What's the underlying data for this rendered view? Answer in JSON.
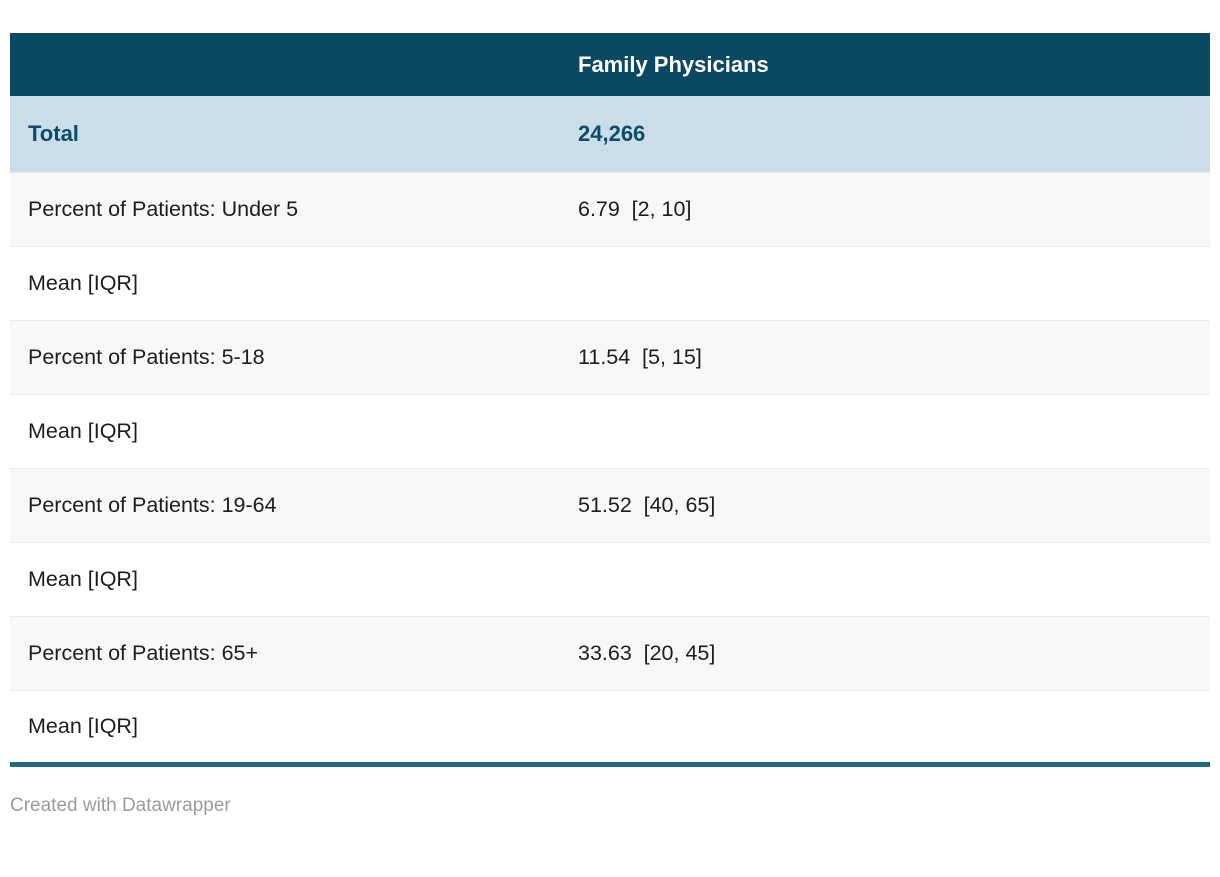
{
  "table": {
    "header": {
      "col1_label": "",
      "col2_label": "Family Physicians"
    },
    "total_row": {
      "label": "Total",
      "value": "24,266"
    },
    "rows": [
      {
        "label": "Percent of Patients: Under 5",
        "value": "6.79",
        "iqr": "[2, 10]"
      },
      {
        "label": "Mean [IQR]",
        "value": "",
        "iqr": ""
      },
      {
        "label": "Percent of Patients: 5-18",
        "value": "11.54",
        "iqr": "[5, 15]"
      },
      {
        "label": "Mean [IQR]",
        "value": "",
        "iqr": ""
      },
      {
        "label": "Percent of Patients: 19-64",
        "value": "51.52",
        "iqr": "[40, 65]"
      },
      {
        "label": "Mean [IQR]",
        "value": "",
        "iqr": ""
      },
      {
        "label": "Percent of Patients: 65+",
        "value": "33.63",
        "iqr": "[20, 45]"
      },
      {
        "label": "Mean [IQR]",
        "value": "",
        "iqr": ""
      }
    ]
  },
  "footer": {
    "credit": "Created with Datawrapper"
  },
  "colors": {
    "header_bg": "#0b4963",
    "header_text": "#ffffff",
    "total_row_bg": "#cbdde8",
    "total_row_text": "#0d4c68",
    "shaded_row_bg": "#f7f7f7",
    "plain_row_bg": "#ffffff",
    "row_divider": "#e9e9e9",
    "bottom_border": "#1d6a84",
    "body_text": "#1d1d1d",
    "credit_text": "#9b9b9b"
  },
  "chart_data": {
    "type": "table",
    "title": "",
    "columns": [
      "",
      "Family Physicians"
    ],
    "rows": [
      [
        "Total",
        "24,266"
      ],
      [
        "Percent of Patients: Under 5",
        "6.79  [2, 10]"
      ],
      [
        "Mean [IQR]",
        ""
      ],
      [
        "Percent of Patients: 5-18",
        "11.54  [5, 15]"
      ],
      [
        "Mean [IQR]",
        ""
      ],
      [
        "Percent of Patients: 19-64",
        "51.52  [40, 65]"
      ],
      [
        "Mean [IQR]",
        ""
      ],
      [
        "Percent of Patients: 65+",
        "33.63  [20, 45]"
      ],
      [
        "Mean [IQR]",
        ""
      ]
    ],
    "total_n": 24266,
    "statistics": [
      {
        "measure": "Percent of Patients: Under 5",
        "statistic": "Mean [IQR]",
        "mean": 6.79,
        "iqr": [
          2,
          10
        ]
      },
      {
        "measure": "Percent of Patients: 5-18",
        "statistic": "Mean [IQR]",
        "mean": 11.54,
        "iqr": [
          5,
          15
        ]
      },
      {
        "measure": "Percent of Patients: 19-64",
        "statistic": "Mean [IQR]",
        "mean": 51.52,
        "iqr": [
          40,
          65
        ]
      },
      {
        "measure": "Percent of Patients: 65+",
        "statistic": "Mean [IQR]",
        "mean": 33.63,
        "iqr": [
          20,
          45
        ]
      }
    ],
    "legend_position": "none",
    "grid": "row-dividers"
  }
}
